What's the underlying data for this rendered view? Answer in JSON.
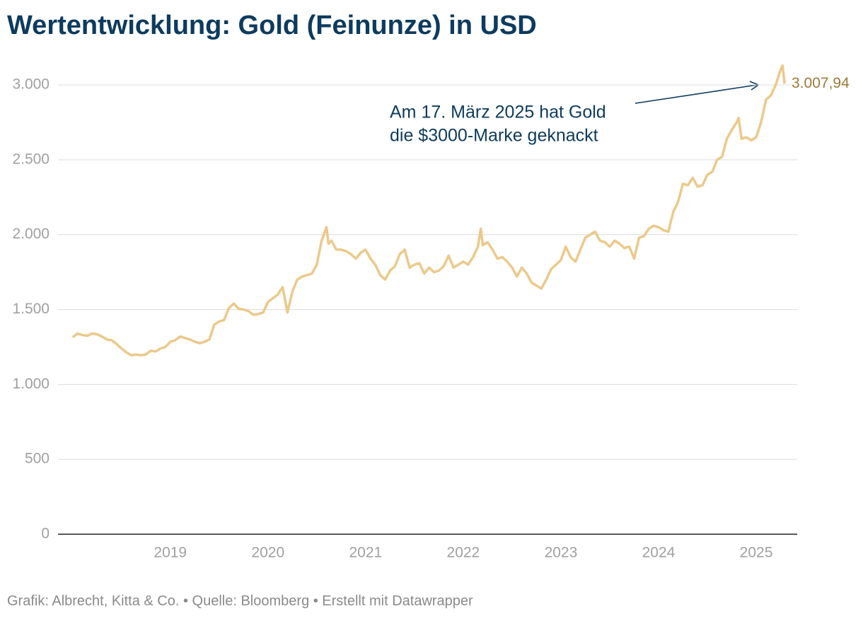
{
  "chart_data": {
    "type": "line",
    "title": "Wertentwicklung: Gold (Feinunze) in USD",
    "annotation": [
      "Am 17. März 2025 hat Gold",
      "die $3000-Marke geknackt"
    ],
    "source": "Grafik: Albrecht, Kitta & Co. • Quelle: Bloomberg • Erstellt mit Datawrapper",
    "xlim": [
      2017.85,
      2025.42
    ],
    "xticks": [
      2019,
      2020,
      2021,
      2022,
      2023,
      2024,
      2025
    ],
    "ylim": [
      0,
      3000
    ],
    "yticks": [
      0,
      500,
      {
        "value": 1000,
        "label": "1.000"
      },
      {
        "value": 1500,
        "label": "1.500"
      },
      {
        "value": 2000,
        "label": "2.000"
      },
      {
        "value": 2500,
        "label": "2.500"
      },
      {
        "value": 3000,
        "label": "3.000"
      }
    ],
    "grid": true,
    "x": [
      2018.0,
      2018.05,
      2018.1,
      2018.15,
      2018.2,
      2018.25,
      2018.3,
      2018.35,
      2018.4,
      2018.45,
      2018.5,
      2018.55,
      2018.6,
      2018.65,
      2018.7,
      2018.75,
      2018.8,
      2018.85,
      2018.9,
      2018.95,
      2019.0,
      2019.05,
      2019.1,
      2019.15,
      2019.2,
      2019.25,
      2019.3,
      2019.35,
      2019.4,
      2019.45,
      2019.5,
      2019.55,
      2019.6,
      2019.65,
      2019.7,
      2019.75,
      2019.8,
      2019.85,
      2019.9,
      2019.95,
      2020.0,
      2020.05,
      2020.1,
      2020.15,
      2020.2,
      2020.25,
      2020.3,
      2020.35,
      2020.4,
      2020.45,
      2020.5,
      2020.55,
      2020.6,
      2020.62,
      2020.65,
      2020.7,
      2020.75,
      2020.8,
      2020.85,
      2020.9,
      2020.95,
      2021.0,
      2021.05,
      2021.1,
      2021.15,
      2021.2,
      2021.25,
      2021.3,
      2021.35,
      2021.4,
      2021.45,
      2021.5,
      2021.55,
      2021.6,
      2021.65,
      2021.7,
      2021.75,
      2021.8,
      2021.85,
      2021.9,
      2021.95,
      2022.0,
      2022.05,
      2022.1,
      2022.15,
      2022.18,
      2022.2,
      2022.25,
      2022.3,
      2022.35,
      2022.4,
      2022.45,
      2022.5,
      2022.55,
      2022.6,
      2022.65,
      2022.7,
      2022.75,
      2022.8,
      2022.85,
      2022.9,
      2022.95,
      2023.0,
      2023.05,
      2023.1,
      2023.15,
      2023.2,
      2023.25,
      2023.3,
      2023.35,
      2023.4,
      2023.45,
      2023.5,
      2023.55,
      2023.6,
      2023.65,
      2023.7,
      2023.75,
      2023.8,
      2023.85,
      2023.9,
      2023.95,
      2024.0,
      2024.05,
      2024.1,
      2024.15,
      2024.2,
      2024.25,
      2024.3,
      2024.35,
      2024.4,
      2024.45,
      2024.5,
      2024.55,
      2024.6,
      2024.65,
      2024.7,
      2024.75,
      2024.8,
      2024.82,
      2024.85,
      2024.9,
      2024.95,
      2025.0,
      2025.05,
      2025.1,
      2025.15,
      2025.2,
      2025.25,
      2025.27,
      2025.29
    ],
    "series": [
      {
        "color": "#ebc98c",
        "values": [
          1315,
          1340,
          1330,
          1325,
          1340,
          1335,
          1320,
          1300,
          1295,
          1270,
          1240,
          1215,
          1195,
          1200,
          1195,
          1200,
          1225,
          1220,
          1240,
          1250,
          1285,
          1295,
          1320,
          1310,
          1300,
          1285,
          1275,
          1285,
          1300,
          1400,
          1420,
          1430,
          1510,
          1540,
          1505,
          1500,
          1490,
          1465,
          1470,
          1480,
          1550,
          1575,
          1600,
          1650,
          1480,
          1620,
          1700,
          1720,
          1730,
          1740,
          1800,
          1960,
          2050,
          1940,
          1960,
          1900,
          1900,
          1890,
          1870,
          1840,
          1880,
          1900,
          1840,
          1800,
          1730,
          1700,
          1760,
          1790,
          1870,
          1900,
          1780,
          1800,
          1810,
          1740,
          1780,
          1750,
          1760,
          1790,
          1860,
          1780,
          1800,
          1820,
          1800,
          1850,
          1920,
          2040,
          1930,
          1950,
          1900,
          1840,
          1850,
          1820,
          1780,
          1720,
          1780,
          1740,
          1680,
          1660,
          1640,
          1700,
          1770,
          1800,
          1830,
          1920,
          1850,
          1820,
          1900,
          1980,
          2000,
          2020,
          1960,
          1950,
          1920,
          1960,
          1940,
          1910,
          1920,
          1840,
          1980,
          1990,
          2040,
          2060,
          2050,
          2030,
          2020,
          2150,
          2220,
          2340,
          2330,
          2380,
          2320,
          2330,
          2400,
          2420,
          2500,
          2520,
          2640,
          2700,
          2750,
          2780,
          2640,
          2650,
          2630,
          2650,
          2750,
          2900,
          2930,
          3000,
          3100,
          3130,
          3007.94
        ],
        "value_labels": [
          null,
          null,
          null,
          null,
          null,
          null,
          null,
          null,
          null,
          null,
          null,
          null,
          null,
          null,
          null,
          null,
          null,
          null,
          null,
          null,
          null,
          null,
          null,
          null,
          null,
          null,
          null,
          null,
          null,
          null,
          null,
          null,
          null,
          null,
          null,
          null,
          null,
          null,
          null,
          null,
          null,
          null,
          null,
          null,
          null,
          null,
          null,
          null,
          null,
          null,
          null,
          null,
          null,
          null,
          null,
          null,
          null,
          null,
          null,
          null,
          null,
          null,
          null,
          null,
          null,
          null,
          null,
          null,
          null,
          null,
          null,
          null,
          null,
          null,
          null,
          null,
          null,
          null,
          null,
          null,
          null,
          null,
          null,
          null,
          null,
          null,
          null,
          null,
          null,
          null,
          null,
          null,
          null,
          null,
          null,
          null,
          null,
          null,
          null,
          null,
          null,
          null,
          null,
          null,
          null,
          null,
          null,
          null,
          null,
          null,
          null,
          null,
          null,
          null,
          null,
          null,
          null,
          null,
          null,
          null,
          null,
          null,
          null,
          null,
          null,
          null,
          null,
          null,
          null,
          null,
          null,
          null,
          null,
          null,
          null,
          null,
          null,
          null,
          null,
          null,
          null,
          null,
          null,
          null,
          null,
          null,
          null,
          null,
          null,
          null,
          "3.007,94"
        ]
      }
    ]
  }
}
